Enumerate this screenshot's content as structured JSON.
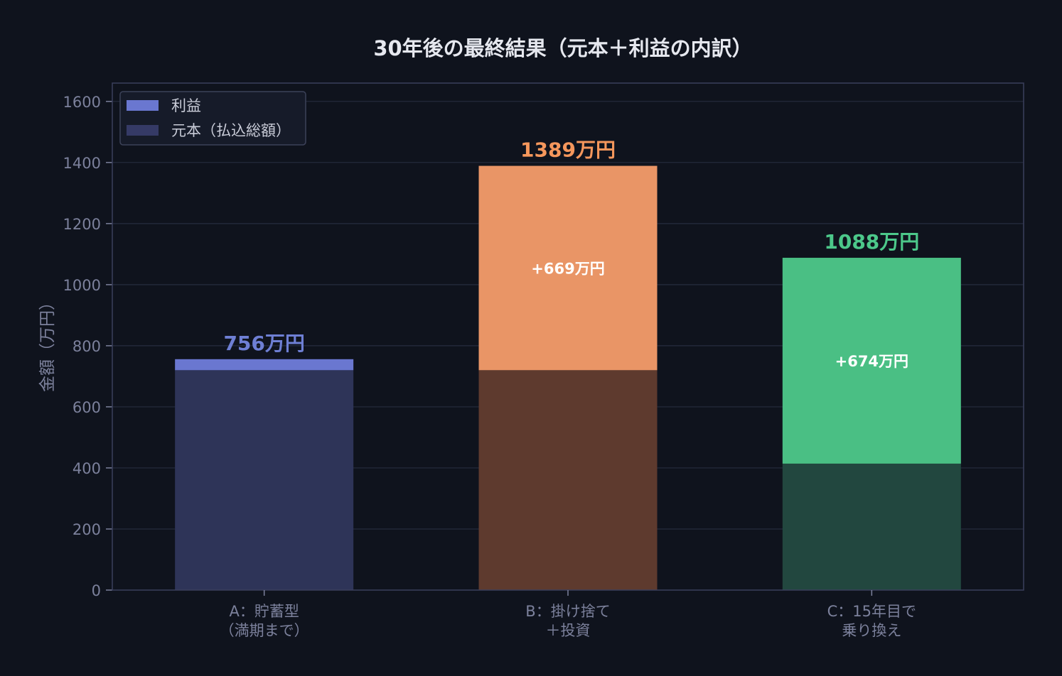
{
  "chart_data": {
    "type": "bar",
    "stacked": true,
    "title": "30年後の最終結果（元本＋利益の内訳）",
    "xlabel": "",
    "ylabel": "金額（万円）",
    "ylim": [
      0,
      1660
    ],
    "yticks": [
      0,
      200,
      400,
      600,
      800,
      1000,
      1200,
      1400,
      1600
    ],
    "grid": true,
    "legend_position": "top-left",
    "categories": [
      [
        "A：貯蓄型",
        "（満期まで）"
      ],
      [
        "B：掛け捨て",
        "＋投資"
      ],
      [
        "C：15年目で",
        "乗り換え"
      ]
    ],
    "series": [
      {
        "name": "利益",
        "values": [
          36,
          669,
          674
        ],
        "legend_color": "#6a77d0"
      },
      {
        "name": "元本（払込総額）",
        "values": [
          720,
          720,
          414
        ],
        "legend_color": "#353a66"
      }
    ],
    "totals": [
      756,
      1389,
      1088
    ],
    "total_labels": [
      "756万円",
      "1389万円",
      "1088万円"
    ],
    "profit_labels": [
      "",
      "+669万円",
      "+674万円"
    ],
    "colors": {
      "background": "#0f131d",
      "profit": [
        "#6a77d0",
        "#e99566",
        "#4abf84"
      ],
      "principal": [
        "#2e3458",
        "#5e3a2e",
        "#22473f"
      ],
      "total_label": [
        "#6e7fd4",
        "#f5975c",
        "#4cc88a"
      ],
      "grid": "#262c3e",
      "axis": "#3a3f5c",
      "tick_text": "#7c819c",
      "title_text": "#e6e8ef",
      "legend_bg": "#161b29",
      "legend_border": "#3c4259"
    }
  }
}
